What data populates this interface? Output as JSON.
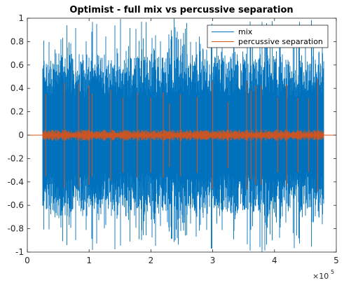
{
  "chart_data": {
    "type": "line",
    "title": "Optimist - full mix vs percussive separation",
    "xlabel": "",
    "ylabel": "",
    "x_exponent_label": "×10",
    "x_exponent_power": "5",
    "xlim": [
      0,
      5
    ],
    "ylim": [
      -1,
      1
    ],
    "x_ticks": [
      0,
      1,
      2,
      3,
      4,
      5
    ],
    "x_tick_labels": [
      "0",
      "1",
      "2",
      "3",
      "4",
      "5"
    ],
    "y_ticks": [
      -1,
      -0.8,
      -0.6,
      -0.4,
      -0.2,
      0,
      0.2,
      0.4,
      0.6,
      0.8,
      1
    ],
    "y_tick_labels": [
      "-1",
      "-0.8",
      "-0.6",
      "-0.4",
      "-0.2",
      "0",
      "0.2",
      "0.4",
      "0.6",
      "0.8",
      "1"
    ],
    "grid": false,
    "legend_position": "top-right",
    "signal_start": 0.25,
    "signal_end": 4.8,
    "series": [
      {
        "name": "mix",
        "color": "#0072BD",
        "typical_envelope": 0.55,
        "peak": 1.0,
        "min_envelope": 0.3
      },
      {
        "name": "percussive separation",
        "color": "#D95319",
        "typical_envelope": 0.04,
        "spike_amplitude": 0.45,
        "spike_positions": [
          0.3,
          0.6,
          0.83,
          1.0,
          1.05,
          1.35,
          1.55,
          1.78,
          2.0,
          2.2,
          2.3,
          2.48,
          2.75,
          3.0,
          3.25,
          3.55,
          3.62,
          3.7,
          3.78,
          4.05,
          4.2,
          4.38,
          4.55,
          4.7
        ]
      }
    ]
  }
}
